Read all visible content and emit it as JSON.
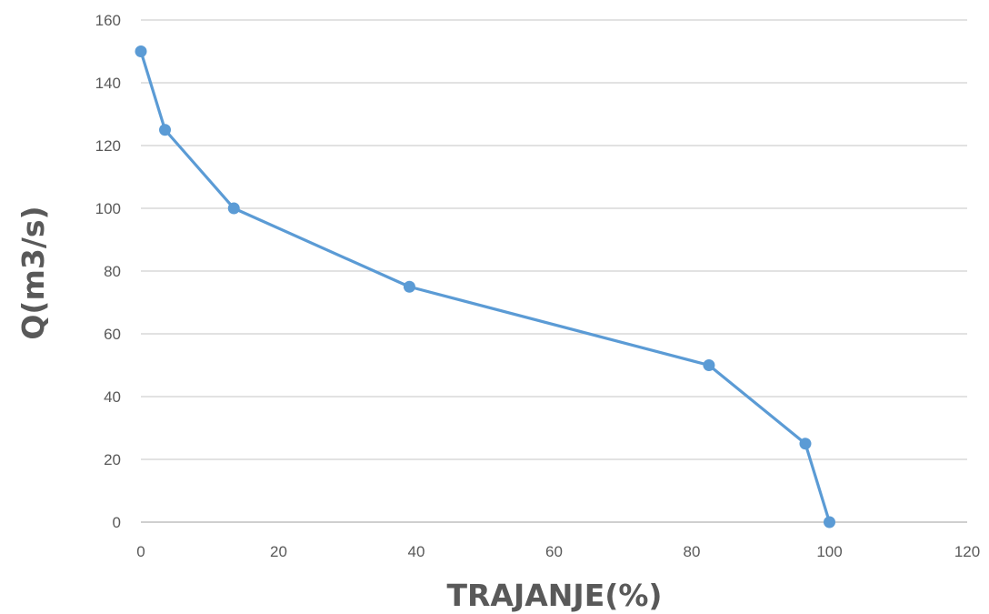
{
  "chart_data": {
    "type": "scatter",
    "title": "",
    "xlabel": "TRAJANJE(%)",
    "ylabel": "Q(m3/s)",
    "xlim": [
      0,
      120
    ],
    "ylim": [
      0,
      160
    ],
    "xticks": [
      0,
      20,
      40,
      60,
      80,
      100,
      120
    ],
    "yticks": [
      0,
      20,
      40,
      60,
      80,
      100,
      120,
      140,
      160
    ],
    "grid": "horizontal",
    "legend": "none",
    "series": [
      {
        "color": "#5b9bd5",
        "x": [
          0,
          3.5,
          13.5,
          39,
          82.5,
          96.5,
          100
        ],
        "y": [
          150,
          125,
          100,
          75,
          50,
          25,
          0
        ]
      }
    ]
  }
}
